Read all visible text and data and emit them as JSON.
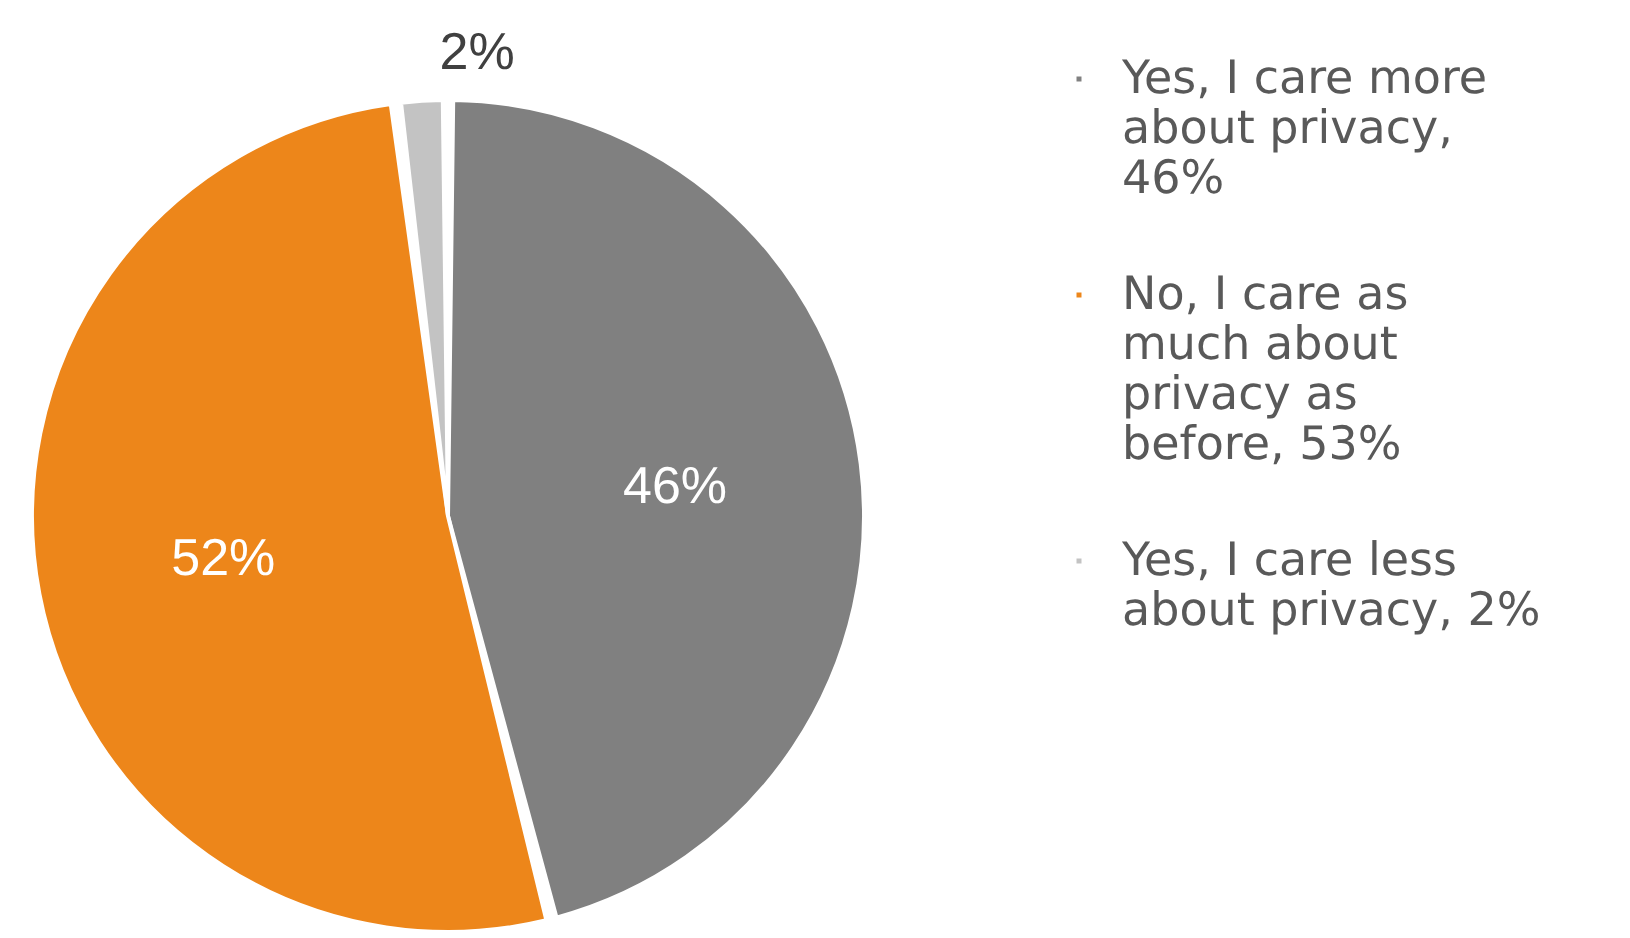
{
  "chart_data": {
    "type": "pie",
    "categories": [
      "Yes, I care more about privacy, 46%",
      "No, I care as much about privacy as before, 53%",
      "Yes, I care less about privacy, 2%"
    ],
    "values": [
      46,
      52,
      2
    ],
    "colors": [
      "#808080",
      "#ed861a",
      "#c3c3c3"
    ],
    "value_labels": [
      "46%",
      "52%",
      "2%"
    ],
    "legend": "right"
  }
}
